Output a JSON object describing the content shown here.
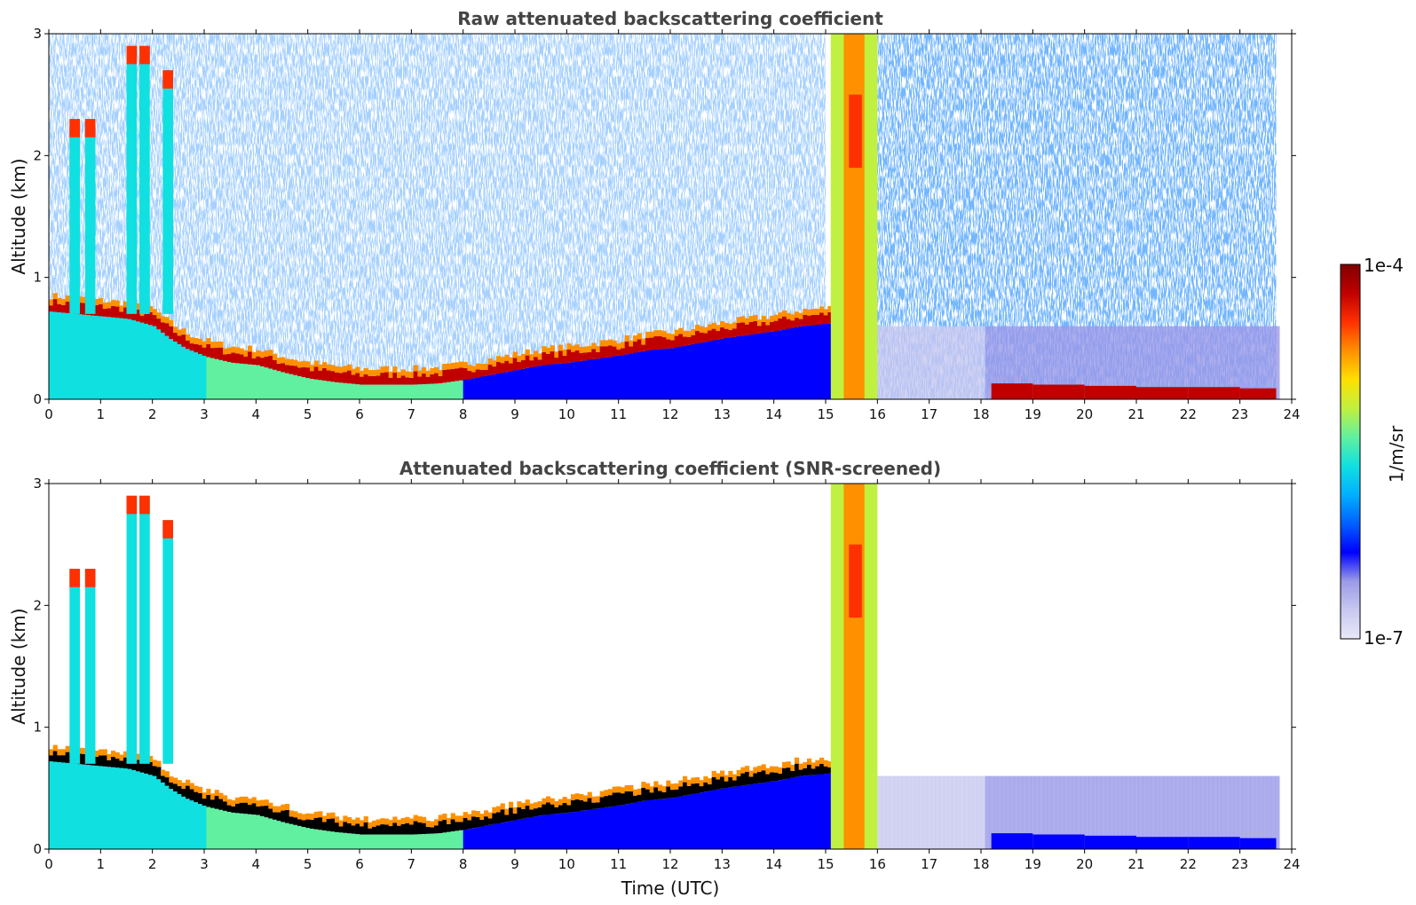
{
  "chart_data": [
    {
      "type": "heatmap",
      "title": "Raw attenuated backscattering coefficient",
      "ylabel": "Altitude (km)",
      "xlabel": "",
      "x_ticks": [
        "0",
        "1",
        "2",
        "3",
        "4",
        "5",
        "6",
        "7",
        "8",
        "9",
        "10",
        "11",
        "12",
        "13",
        "14",
        "15",
        "16",
        "17",
        "18",
        "19",
        "20",
        "21",
        "22",
        "23",
        "24"
      ],
      "y_ticks": [
        "0",
        "1",
        "2",
        "3"
      ],
      "xlim": [
        0,
        24
      ],
      "ylim": [
        0,
        3
      ],
      "layers": [
        {
          "feature": "aerosol/cloud layer top (km)",
          "x": [
            0,
            0.5,
            1,
            1.5,
            2,
            2.3,
            2.6,
            3,
            3.5,
            4,
            4.5,
            5,
            5.5,
            6,
            6.5,
            7,
            7.5,
            8,
            8.5,
            9,
            9.5,
            10,
            10.5,
            11,
            11.5,
            12,
            12.5,
            13,
            13.5,
            14,
            14.5,
            15
          ],
          "y": [
            0.72,
            0.7,
            0.68,
            0.66,
            0.6,
            0.5,
            0.42,
            0.35,
            0.3,
            0.28,
            0.22,
            0.17,
            0.14,
            0.12,
            0.12,
            0.12,
            0.13,
            0.16,
            0.2,
            0.24,
            0.28,
            0.3,
            0.33,
            0.36,
            0.4,
            0.42,
            0.46,
            0.5,
            0.53,
            0.56,
            0.6,
            0.62
          ]
        },
        {
          "feature": "thick cloud column",
          "x_range": [
            15.1,
            16.0
          ],
          "y_range": [
            0,
            3
          ]
        },
        {
          "feature": "surface layer (km)",
          "x": [
            18.2,
            19,
            20,
            21,
            22,
            23,
            23.7
          ],
          "y": [
            0.1,
            0.09,
            0.08,
            0.07,
            0.07,
            0.06,
            0.06
          ]
        }
      ]
    },
    {
      "type": "heatmap",
      "title": "Attenuated backscattering coefficient (SNR-screened)",
      "ylabel": "Altitude (km)",
      "xlabel": "Time (UTC)",
      "x_ticks": [
        "0",
        "1",
        "2",
        "3",
        "4",
        "5",
        "6",
        "7",
        "8",
        "9",
        "10",
        "11",
        "12",
        "13",
        "14",
        "15",
        "16",
        "17",
        "18",
        "19",
        "20",
        "21",
        "22",
        "23",
        "24"
      ],
      "y_ticks": [
        "0",
        "1",
        "2",
        "3"
      ],
      "xlim": [
        0,
        24
      ],
      "ylim": [
        0,
        3
      ]
    }
  ],
  "colorbar": {
    "max_label": "1e-4",
    "min_label": "1e-7",
    "unit_label": "1/m/sr",
    "colors": [
      "#e8e8f8",
      "#c8c8f0",
      "#9a9ae8",
      "#0000ff",
      "#0060ff",
      "#00b0ff",
      "#10e0e0",
      "#60f0a0",
      "#c0f040",
      "#ffe000",
      "#ff9000",
      "#ff3000",
      "#c00000",
      "#800000"
    ]
  }
}
